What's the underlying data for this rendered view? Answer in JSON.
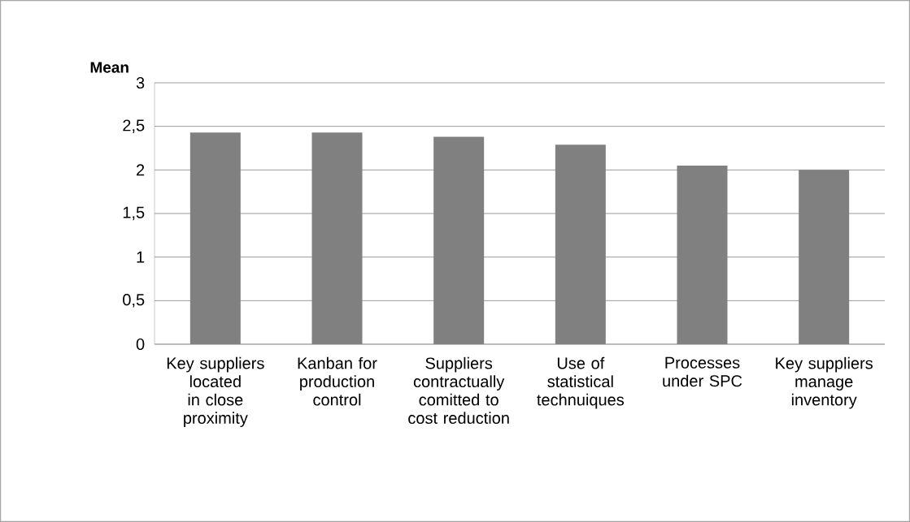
{
  "chart_data": {
    "type": "bar",
    "ylabel": "Mean",
    "categories": [
      "Key suppliers located in close proximity",
      "Kanban for production control",
      "Suppliers contractually comitted to cost reduction",
      "Use of statistical technuiques",
      "Processes under SPC",
      "Key suppliers manage inventory"
    ],
    "values": [
      2.43,
      2.43,
      2.38,
      2.29,
      2.05,
      2.0
    ],
    "color": "#808080",
    "ylim": [
      0,
      3
    ],
    "yticks": [
      {
        "value": 0,
        "label": "0"
      },
      {
        "value": 0.5,
        "label": "0,5"
      },
      {
        "value": 1,
        "label": "1"
      },
      {
        "value": 1.5,
        "label": "1,5"
      },
      {
        "value": 2,
        "label": "2"
      },
      {
        "value": 2.5,
        "label": "2,5"
      },
      {
        "value": 3,
        "label": "3"
      }
    ],
    "grid": "y"
  }
}
